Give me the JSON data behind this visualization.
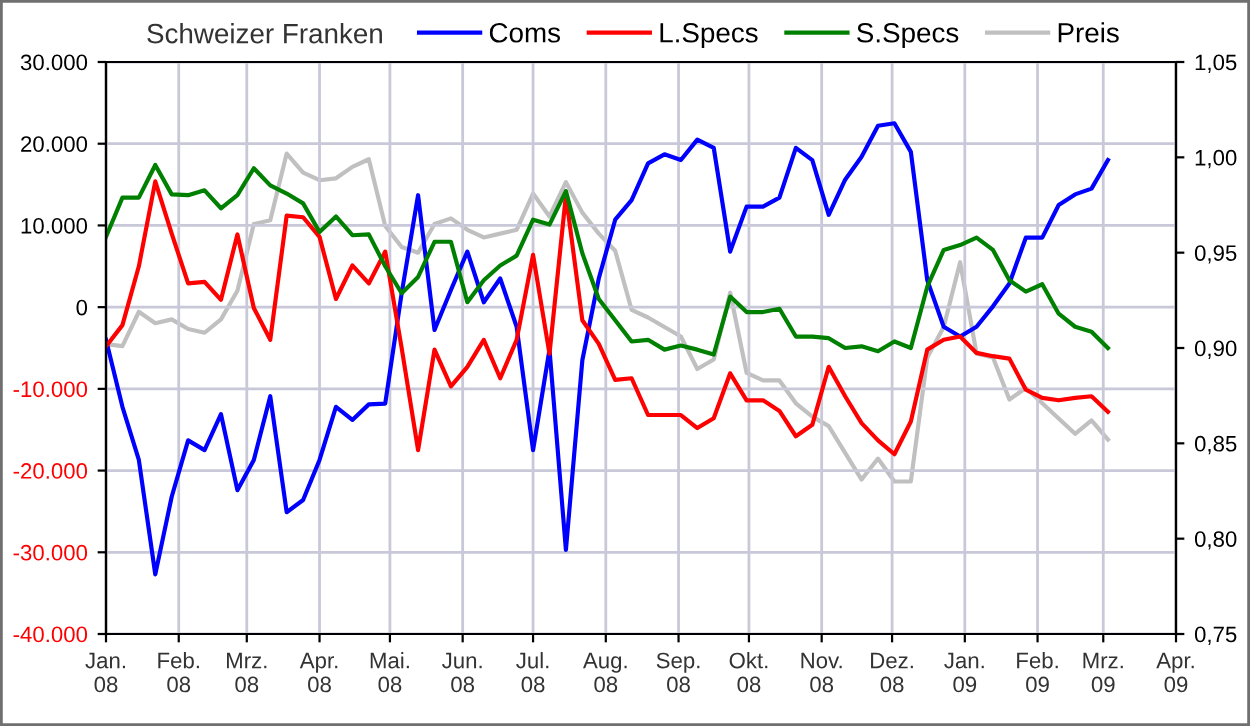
{
  "chart_data": {
    "type": "line",
    "title": "Schweizer Franken",
    "x": [
      "2008-01-01",
      "2008-01-08",
      "2008-01-15",
      "2008-01-22",
      "2008-01-29",
      "2008-02-05",
      "2008-02-12",
      "2008-02-19",
      "2008-02-26",
      "2008-03-04",
      "2008-03-11",
      "2008-03-18",
      "2008-03-25",
      "2008-04-01",
      "2008-04-08",
      "2008-04-15",
      "2008-04-22",
      "2008-04-29",
      "2008-05-06",
      "2008-05-13",
      "2008-05-20",
      "2008-05-27",
      "2008-06-03",
      "2008-06-10",
      "2008-06-17",
      "2008-06-24",
      "2008-07-01",
      "2008-07-08",
      "2008-07-15",
      "2008-07-22",
      "2008-07-29",
      "2008-08-05",
      "2008-08-12",
      "2008-08-19",
      "2008-08-26",
      "2008-09-02",
      "2008-09-09",
      "2008-09-16",
      "2008-09-23",
      "2008-09-30",
      "2008-10-07",
      "2008-10-14",
      "2008-10-21",
      "2008-10-28",
      "2008-11-04",
      "2008-11-11",
      "2008-11-18",
      "2008-11-25",
      "2008-12-02",
      "2008-12-09",
      "2008-12-16",
      "2008-12-23",
      "2008-12-30",
      "2009-01-06",
      "2009-01-13",
      "2009-01-20",
      "2009-01-27",
      "2009-02-03",
      "2009-02-10",
      "2009-02-17",
      "2009-02-24",
      "2009-03-03"
    ],
    "series": [
      {
        "name": "Coms",
        "color": "#0000ff",
        "values": [
          -4000,
          -12200,
          -18700,
          -32700,
          -23200,
          -16300,
          -17500,
          -13100,
          -22400,
          -18700,
          -10900,
          -25100,
          -23600,
          -18700,
          -12200,
          -13800,
          -11900,
          -11800,
          1700,
          13700,
          -2800,
          2100,
          6800,
          600,
          3500,
          -2400,
          -17500,
          -5200,
          -29700,
          -6500,
          3500,
          10700,
          13100,
          17600,
          18700,
          18000,
          20500,
          19500,
          6800,
          12300,
          12300,
          13400,
          19500,
          18000,
          11300,
          15600,
          18400,
          22200,
          22500,
          19000,
          3300,
          -2400,
          -3600,
          -2400,
          100,
          2900,
          8500,
          8500,
          12500,
          13800,
          14500,
          18000
        ]
      },
      {
        "name": "L.Specs",
        "color": "#ff0000",
        "values": [
          -4800,
          -2200,
          5000,
          15400,
          9000,
          2900,
          3100,
          900,
          8900,
          -100,
          -4000,
          11200,
          11000,
          8600,
          1000,
          5100,
          2900,
          6800,
          -5000,
          -17500,
          -5200,
          -9700,
          -7300,
          -4000,
          -8700,
          -4000,
          6400,
          -5700,
          13700,
          -1600,
          -4500,
          -8900,
          -8700,
          -13200,
          -13200,
          -13200,
          -14800,
          -13600,
          -8100,
          -11400,
          -11400,
          -12700,
          -15800,
          -14400,
          -7300,
          -10900,
          -14200,
          -16300,
          -18000,
          -14000,
          -5200,
          -4000,
          -3600,
          -5600,
          -6000,
          -6300,
          -10100,
          -11100,
          -11400,
          -11100,
          -10900,
          -12800
        ]
      },
      {
        "name": "S.Specs",
        "color": "#008000",
        "values": [
          8600,
          13400,
          13400,
          17400,
          13800,
          13700,
          14300,
          12100,
          13700,
          17000,
          14900,
          13900,
          12700,
          9200,
          11100,
          8800,
          8900,
          5000,
          1700,
          3700,
          8000,
          8000,
          600,
          3300,
          5100,
          6300,
          10700,
          10100,
          14200,
          6600,
          1000,
          -1600,
          -4200,
          -4000,
          -5200,
          -4700,
          -5200,
          -5800,
          1300,
          -600,
          -600,
          -200,
          -3600,
          -3600,
          -3800,
          -5000,
          -4800,
          -5400,
          -4200,
          -5000,
          2500,
          7000,
          7600,
          8500,
          7000,
          3300,
          1900,
          2800,
          -800,
          -2400,
          -3000,
          -5000
        ]
      },
      {
        "name": "Preis",
        "color": "#c0c0c0",
        "axis": "y2",
        "values": [
          0.902,
          0.901,
          0.919,
          0.913,
          0.915,
          0.91,
          0.908,
          0.915,
          0.93,
          0.965,
          0.967,
          1.002,
          0.992,
          0.988,
          0.989,
          0.995,
          0.999,
          0.964,
          0.953,
          0.95,
          0.965,
          0.968,
          0.962,
          0.958,
          0.96,
          0.962,
          0.981,
          0.969,
          0.987,
          0.971,
          0.96,
          0.951,
          0.92,
          0.916,
          0.911,
          0.906,
          0.889,
          0.894,
          0.929,
          0.887,
          0.883,
          0.883,
          0.871,
          0.864,
          0.859,
          0.845,
          0.831,
          0.842,
          0.83,
          0.83,
          0.895,
          0.911,
          0.945,
          0.897,
          0.895,
          0.873,
          0.879,
          0.871,
          0.863,
          0.855,
          0.862,
          0.852
        ]
      }
    ],
    "xlim": [
      "2008-01-01",
      "2009-04-01"
    ],
    "xticks": [
      {
        "value": "2008-01-01",
        "label": "Jan.\n08"
      },
      {
        "value": "2008-02-01",
        "label": "Feb.\n08"
      },
      {
        "value": "2008-03-01",
        "label": "Mrz.\n08"
      },
      {
        "value": "2008-04-01",
        "label": "Apr.\n08"
      },
      {
        "value": "2008-05-01",
        "label": "Mai.\n08"
      },
      {
        "value": "2008-06-01",
        "label": "Jun.\n08"
      },
      {
        "value": "2008-07-01",
        "label": "Jul.\n08"
      },
      {
        "value": "2008-08-01",
        "label": "Aug.\n08"
      },
      {
        "value": "2008-09-01",
        "label": "Sep.\n08"
      },
      {
        "value": "2008-10-01",
        "label": "Okt.\n08"
      },
      {
        "value": "2008-11-01",
        "label": "Nov.\n08"
      },
      {
        "value": "2008-12-01",
        "label": "Dez.\n08"
      },
      {
        "value": "2009-01-01",
        "label": "Jan.\n09"
      },
      {
        "value": "2009-02-01",
        "label": "Feb.\n09"
      },
      {
        "value": "2009-03-01",
        "label": "Mrz.\n09"
      },
      {
        "value": "2009-04-01",
        "label": "Apr.\n09"
      }
    ],
    "ylim": [
      -40000,
      30000
    ],
    "yticks": [
      {
        "value": -40000,
        "label": "-40.000"
      },
      {
        "value": -30000,
        "label": "-30.000"
      },
      {
        "value": -20000,
        "label": "-20.000"
      },
      {
        "value": -10000,
        "label": "-10.000"
      },
      0,
      {
        "value": 10000,
        "label": "10.000"
      },
      {
        "value": 20000,
        "label": "20.000"
      },
      {
        "value": 30000,
        "label": "30.000"
      }
    ],
    "y2lim": [
      0.75,
      1.05
    ],
    "y2ticks": [
      {
        "value": 0.75,
        "label": "0,75"
      },
      {
        "value": 0.8,
        "label": "0,80"
      },
      {
        "value": 0.85,
        "label": "0,85"
      },
      {
        "value": 0.9,
        "label": "0,90"
      },
      {
        "value": 0.95,
        "label": "0,95"
      },
      {
        "value": 1.0,
        "label": "1,00"
      },
      {
        "value": 1.05,
        "label": "1,05"
      }
    ],
    "grid": true,
    "legend": "top",
    "marker": "none",
    "line_style": "solid"
  }
}
